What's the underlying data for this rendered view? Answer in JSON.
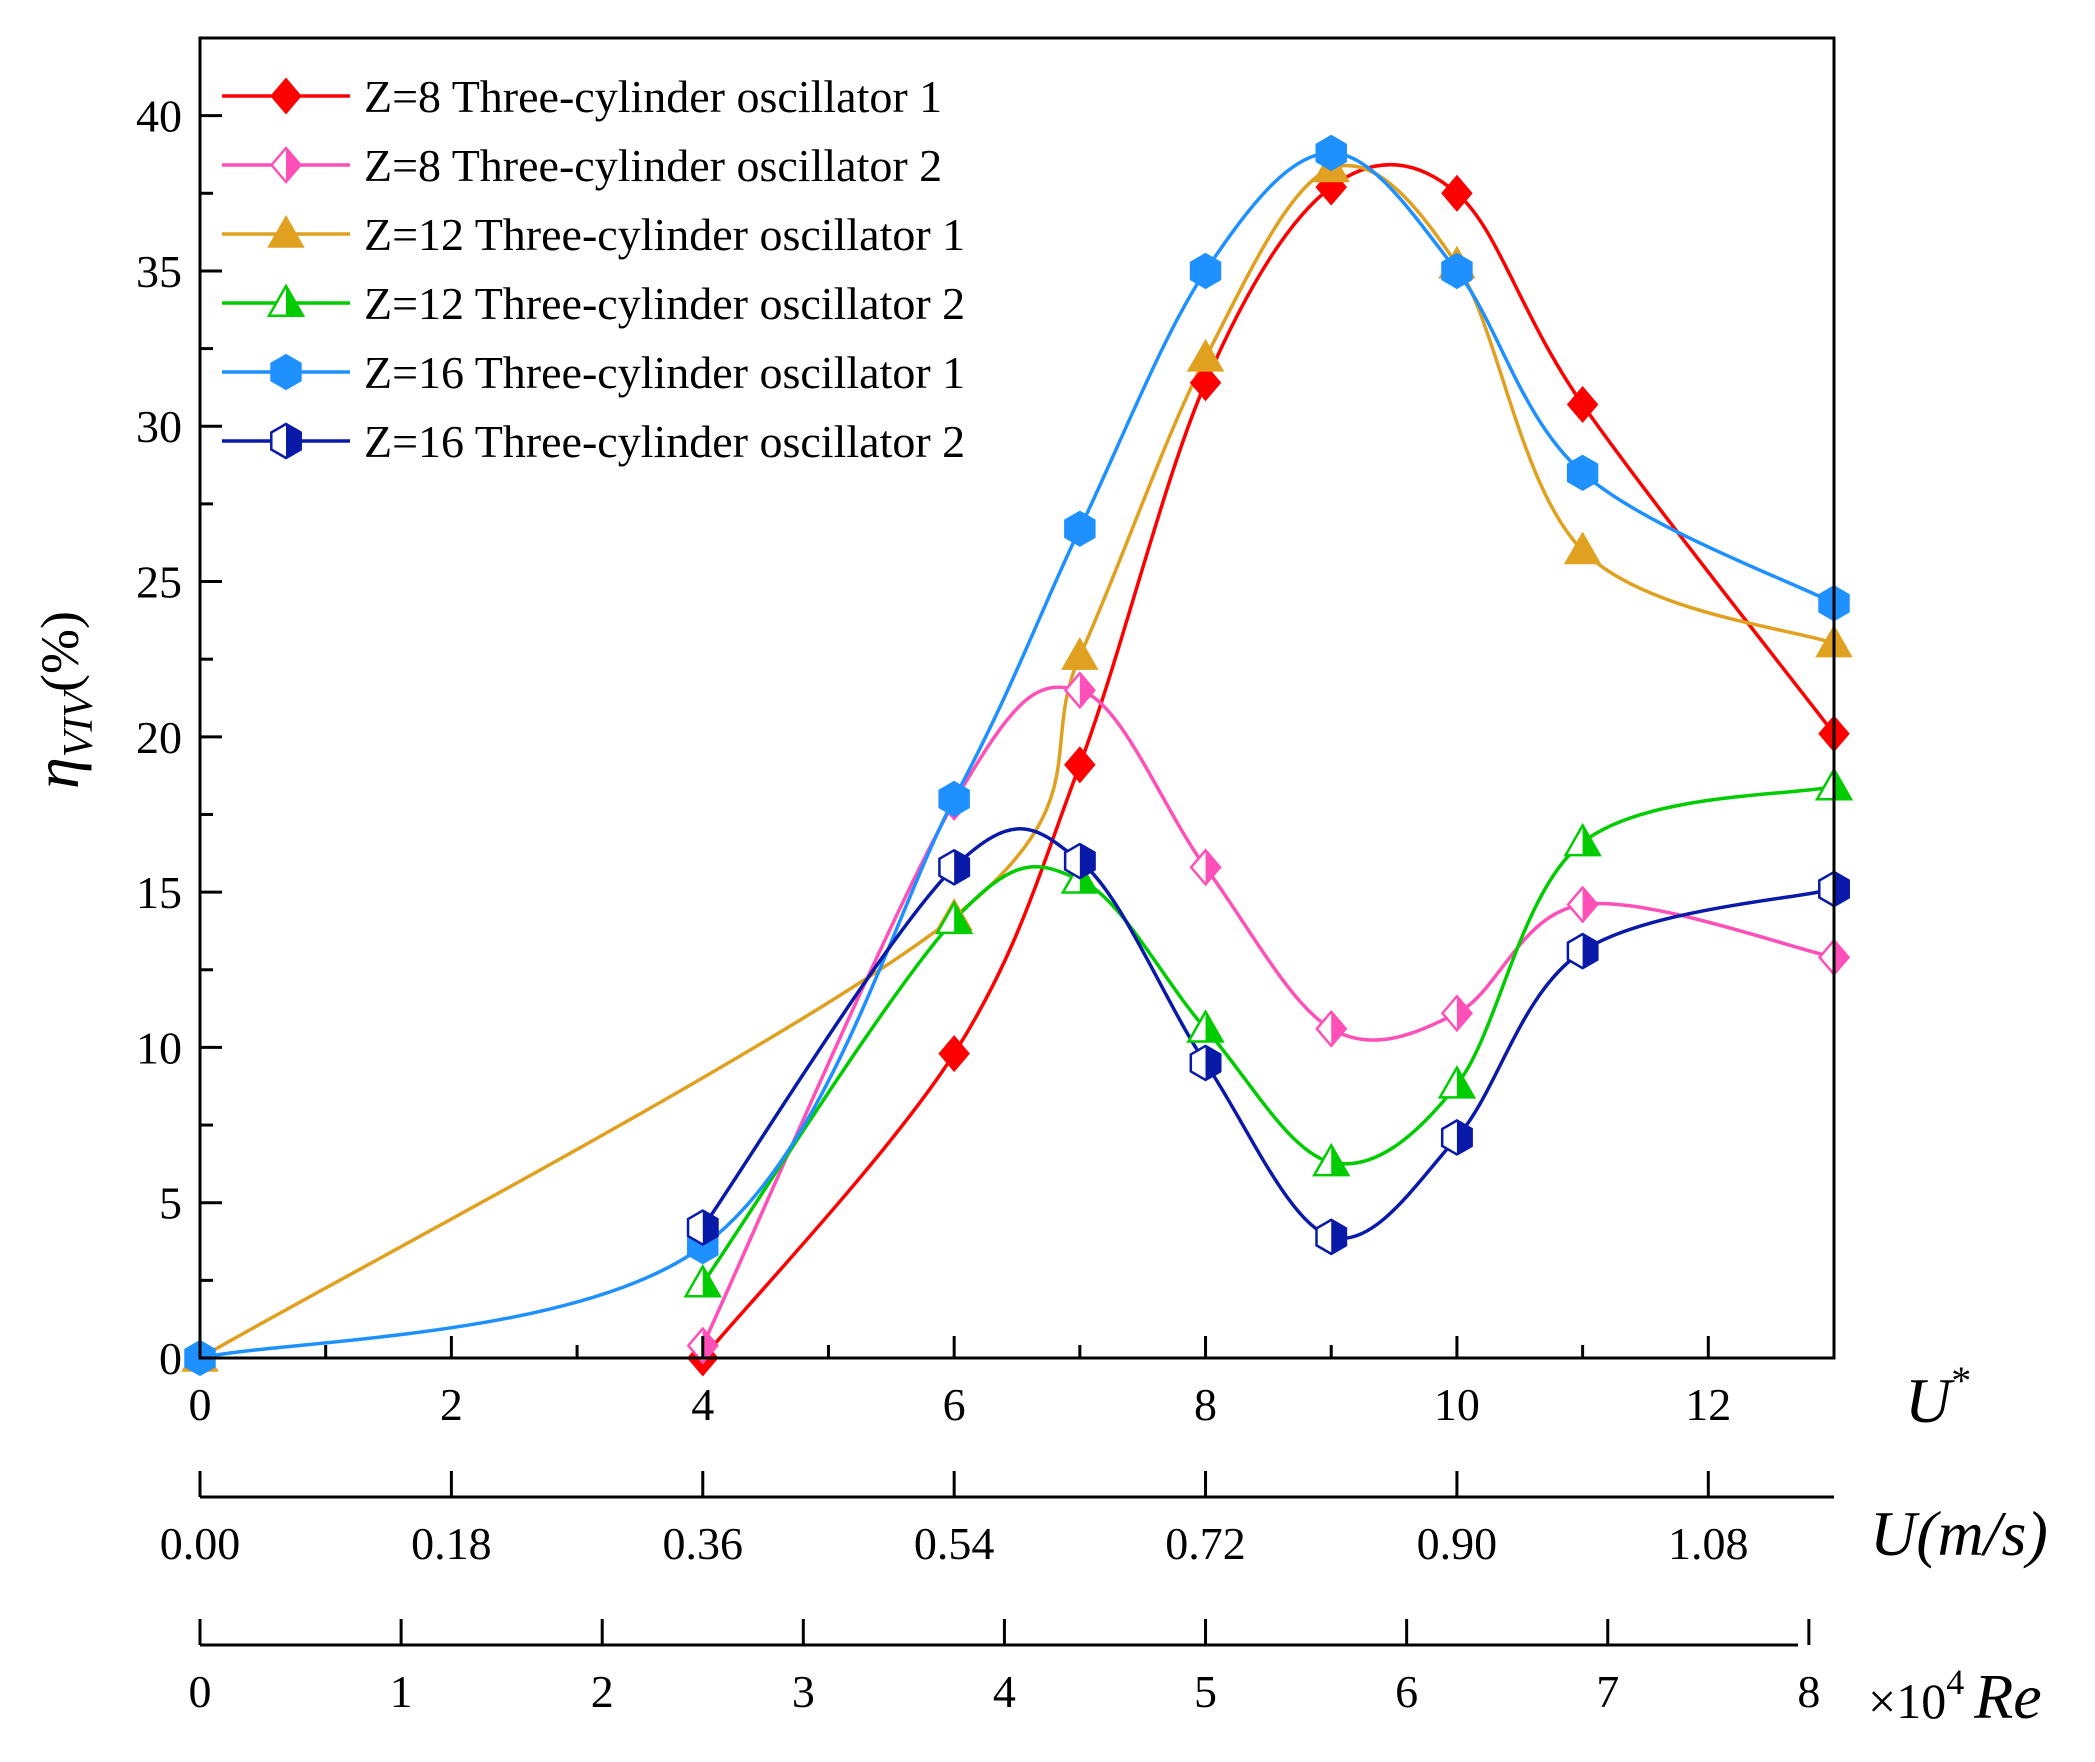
{
  "chart_data": {
    "type": "line",
    "ylabel": "η",
    "ylabel_sub": "VIV",
    "ylabel_unit": "(%)",
    "xlabel": "U*",
    "xlabel_main": "U",
    "xlabel_sup": "*",
    "xlim": [
      0,
      13
    ],
    "ylim": [
      0,
      42.5
    ],
    "x_ticks": [
      0,
      2,
      4,
      6,
      8,
      10,
      12
    ],
    "y_ticks": [
      0,
      5,
      10,
      15,
      20,
      25,
      30,
      35,
      40
    ],
    "x_tick_labels": [
      "0",
      "2",
      "4",
      "6",
      "8",
      "10",
      "12"
    ],
    "y_tick_labels": [
      "0",
      "5",
      "10",
      "15",
      "20",
      "25",
      "30",
      "35",
      "40"
    ],
    "secondary_axes": [
      {
        "title": "U(m/s)",
        "title_main": "U",
        "title_unit": "(m/s)",
        "ticks_ustar": [
          0,
          2,
          4,
          6,
          8,
          10,
          12
        ],
        "labels": [
          "0.00",
          "0.18",
          "0.36",
          "0.54",
          "0.72",
          "0.90",
          "1.08"
        ]
      },
      {
        "title": "×10⁴ Re",
        "title_prefix": "×10",
        "title_exp": "4",
        "title_main": "Re",
        "ticks_ustar": [
          0,
          1.6,
          3.2,
          4.8,
          6.4,
          8.0,
          9.6,
          11.2,
          12.8
        ],
        "labels": [
          "0",
          "1",
          "2",
          "3",
          "4",
          "5",
          "6",
          "7",
          "8"
        ]
      }
    ],
    "series": [
      {
        "name": "Z=8 Three-cylinder oscillator 1",
        "color": "#ff0000",
        "marker": "diamond",
        "fill": "full",
        "x": [
          4,
          6,
          7,
          8,
          9,
          10,
          11,
          13
        ],
        "y": [
          0,
          9.8,
          19.1,
          31.4,
          37.7,
          37.5,
          30.7,
          20.1
        ]
      },
      {
        "name": "Z=8 Three-cylinder oscillator 2",
        "color": "#ff4fb8",
        "marker": "diamond",
        "fill": "half",
        "x": [
          4,
          6,
          7,
          8,
          9,
          10,
          11,
          13
        ],
        "y": [
          0.4,
          17.9,
          21.5,
          15.8,
          10.6,
          11.1,
          14.6,
          12.9
        ]
      },
      {
        "name": "Z=12 Three-cylinder oscillator 1",
        "color": "#e0a020",
        "marker": "triangle",
        "fill": "full",
        "x": [
          0,
          6,
          7,
          8,
          9,
          10,
          11,
          13
        ],
        "y": [
          0,
          14.2,
          22.6,
          32.2,
          38.3,
          35.2,
          26.0,
          23.0
        ]
      },
      {
        "name": "Z=12 Three-cylinder oscillator 2",
        "color": "#00cc00",
        "marker": "triangle",
        "fill": "half",
        "x": [
          4,
          6,
          7,
          8,
          9,
          10,
          11,
          13
        ],
        "y": [
          2.4,
          14.1,
          15.4,
          10.6,
          6.3,
          8.8,
          16.6,
          18.4
        ]
      },
      {
        "name": "Z=16 Three-cylinder oscillator 1",
        "color": "#1e90ff",
        "marker": "hexagon",
        "fill": "full",
        "x": [
          0,
          4,
          6,
          7,
          8,
          9,
          10,
          11,
          13
        ],
        "y": [
          0,
          3.6,
          18.0,
          26.7,
          35.0,
          38.8,
          35.0,
          28.5,
          24.3
        ]
      },
      {
        "name": "Z=16 Three-cylinder oscillator 2",
        "color": "#0a1aa8",
        "marker": "hexagon",
        "fill": "half",
        "x": [
          4,
          6,
          7,
          8,
          9,
          10,
          11,
          13
        ],
        "y": [
          4.2,
          15.8,
          16.0,
          9.5,
          3.9,
          7.1,
          13.1,
          15.1
        ]
      }
    ]
  }
}
